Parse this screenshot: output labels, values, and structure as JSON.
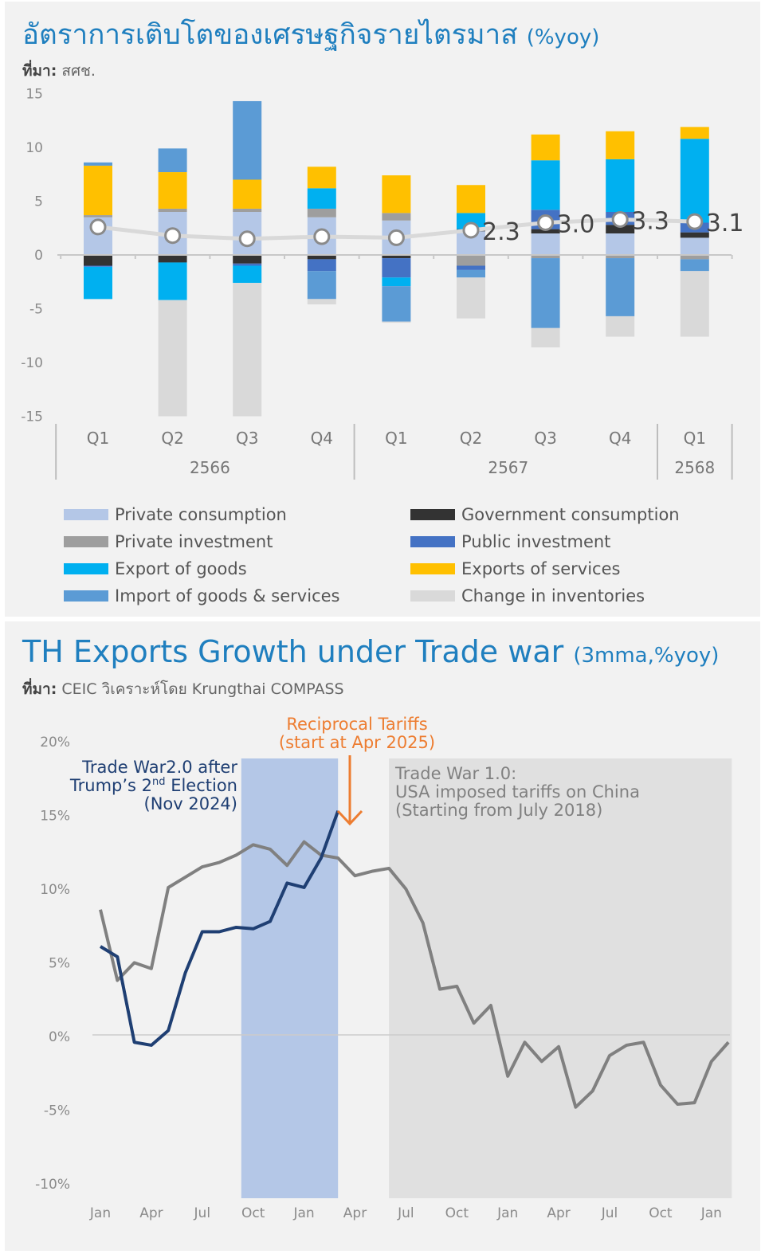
{
  "chart_data": [
    {
      "type": "bar",
      "stacked": true,
      "title": "อัตราการเติบโตของเศรษฐกิจรายไตรมาส",
      "title_unit": "(%yoy)",
      "source_label": "ที่มา:",
      "source": "สศช.",
      "ylim": [
        -15,
        15
      ],
      "yticks": [
        15,
        10,
        5,
        0,
        -5,
        -10,
        -15
      ],
      "categories": [
        "Q1",
        "Q2",
        "Q3",
        "Q4",
        "Q1",
        "Q2",
        "Q3",
        "Q4",
        "Q1"
      ],
      "year_groups": [
        {
          "label": "2566",
          "count": 4
        },
        {
          "label": "2567",
          "count": 4
        },
        {
          "label": "2568",
          "count": 1
        }
      ],
      "series": [
        {
          "name": "Private consumption",
          "color": "#b4c7e7",
          "values": [
            3.5,
            4.0,
            4.0,
            3.5,
            3.2,
            2.2,
            2.0,
            2.0,
            1.6
          ]
        },
        {
          "name": "Government consumption",
          "color": "#333333",
          "values": [
            -1.0,
            -0.7,
            -0.8,
            -0.4,
            -0.3,
            0.2,
            0.4,
            0.8,
            0.5
          ]
        },
        {
          "name": "Private investment",
          "color": "#9e9e9e",
          "values": [
            0.2,
            0.3,
            0.3,
            0.8,
            0.7,
            -1.0,
            -0.3,
            -0.3,
            -0.4
          ]
        },
        {
          "name": "Public investment",
          "color": "#4472c4",
          "values": [
            -0.1,
            0.0,
            -0.2,
            -1.1,
            -1.8,
            -0.4,
            1.8,
            1.2,
            0.9
          ]
        },
        {
          "name": "Export of goods",
          "color": "#00b0f0",
          "values": [
            -3.0,
            -3.5,
            -1.6,
            1.9,
            -0.8,
            1.5,
            4.6,
            4.9,
            7.8
          ]
        },
        {
          "name": "Exports of services",
          "color": "#ffc000",
          "values": [
            4.6,
            3.4,
            2.7,
            2.0,
            3.5,
            2.6,
            2.4,
            2.6,
            1.1
          ]
        },
        {
          "name": "Import of goods & services",
          "color": "#5b9bd5",
          "values": [
            0.3,
            2.2,
            7.3,
            -2.6,
            -3.3,
            -0.7,
            -6.5,
            -5.4,
            -1.1
          ]
        },
        {
          "name": "Change in inventories",
          "color": "#d9d9d9",
          "values": [
            0.0,
            -10.8,
            -12.4,
            -0.5,
            -0.1,
            -3.8,
            -1.8,
            -1.9,
            -6.1
          ]
        }
      ],
      "gdp_line": {
        "color": "#d9d9d9",
        "values": [
          2.6,
          1.8,
          1.5,
          1.7,
          1.6,
          2.3,
          3.0,
          3.3,
          3.1
        ]
      },
      "gdp_labels": [
        "",
        "",
        "",
        "",
        "",
        "2.3",
        "3.0",
        "3.3",
        "3.1"
      ]
    },
    {
      "type": "line",
      "title": "TH Exports Growth under Trade war",
      "title_unit": "(3mma,%yoy)",
      "source_label": "ที่มา:",
      "source": "CEIC วิเคราะห์โดย Krungthai COMPASS",
      "ylim": [
        -10,
        20
      ],
      "yticks": [
        "20%",
        "15%",
        "10%",
        "5%",
        "0%",
        "-5%",
        "-10%"
      ],
      "ytick_values": [
        20,
        15,
        10,
        5,
        0,
        -5,
        -10
      ],
      "xtick_labels": [
        "Jan",
        "Apr",
        "Jul",
        "Oct",
        "Jan",
        "Apr",
        "Jul",
        "Oct",
        "Jan",
        "Apr",
        "Jul",
        "Oct",
        "Jan"
      ],
      "x_month_count": 37,
      "series": [
        {
          "name": "Trade War 1.0",
          "color": "#808080",
          "values": [
            8.5,
            3.7,
            4.9,
            4.5,
            10.0,
            10.7,
            11.4,
            11.7,
            12.2,
            12.9,
            12.6,
            11.5,
            13.1,
            12.2,
            12.0,
            10.8,
            11.1,
            11.3,
            9.9,
            7.6,
            3.1,
            3.3,
            0.8,
            2.0,
            -2.8,
            -0.5,
            -1.8,
            -0.8,
            -4.9,
            -3.8,
            -1.4,
            -0.7,
            -0.5,
            -3.4,
            -4.7,
            -4.6,
            -1.8,
            -0.5
          ]
        },
        {
          "name": "Trade War 2.0",
          "color": "#1f3f73",
          "values": [
            6.0,
            5.3,
            -0.5,
            -0.7,
            0.3,
            4.2,
            7.0,
            7.0,
            7.3,
            7.2,
            7.7,
            10.3,
            10.0,
            12.0,
            15.2
          ]
        }
      ],
      "shaded_regions": [
        {
          "label": "trade-war-2",
          "from": 8.3,
          "to": 14,
          "color": "#b4c7e7"
        },
        {
          "label": "trade-war-1",
          "from": 17,
          "to": 37.2,
          "color": "#e0e0e0"
        }
      ],
      "annotations": {
        "trade_war_2": {
          "line1": "Trade War2.0 after",
          "line2_pre": "Trump’s 2",
          "line2_sup": "nd",
          "line2_post": " Election",
          "line3": "(Nov 2024)",
          "color": "#1f3f73"
        },
        "trade_war_1": {
          "line1": "Trade War 1.0:",
          "line2": "USA imposed tariffs on China",
          "line3": "(Starting from July 2018)",
          "color": "#808080"
        },
        "reciprocal": {
          "line1": "Reciprocal Tariffs",
          "line2": "(start at Apr 2025)",
          "color": "#ed7d31"
        }
      }
    }
  ]
}
